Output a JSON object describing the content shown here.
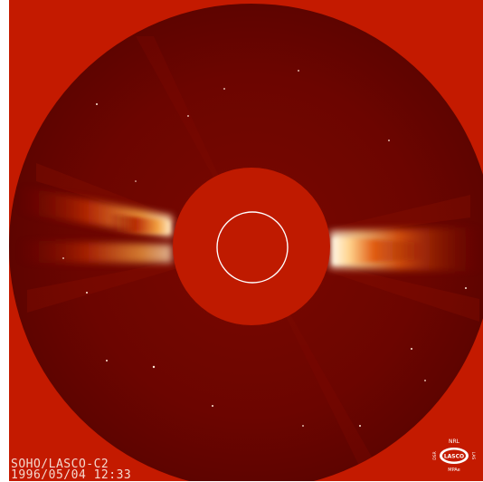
{
  "instrument_caption": "SOHO/LASCO-C2",
  "timestamp_caption": "1996/05/04 12:33",
  "logo": {
    "top_text": "NRL",
    "center_text": "LASCO",
    "left_text": "DSR",
    "right_text": "LAS",
    "bottom_text": "MPAe"
  },
  "colors": {
    "background_red": "#c41a00",
    "field_dark_red": "#6e0500",
    "occulter_red": "#bf1a00",
    "solar_limb_circle": "#ffffff",
    "streamer_bright": "#fff2d6"
  }
}
